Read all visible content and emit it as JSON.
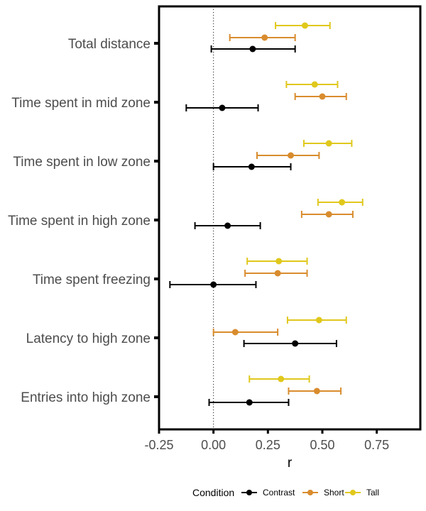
{
  "chart_data": {
    "type": "scatter",
    "subtype": "forest-plot-with-error-bars",
    "xlabel": "r",
    "ylabel": "",
    "xlim": [
      -0.25,
      0.95
    ],
    "xticks": [
      -0.25,
      0.0,
      0.25,
      0.5,
      0.75
    ],
    "xtick_labels": [
      "-0.25",
      "0.00",
      "0.25",
      "0.50",
      "0.75"
    ],
    "reference_line": {
      "x": 0,
      "style": "dotted"
    },
    "grid": false,
    "categories": [
      "Total distance",
      "Time spent in mid zone",
      "Time spent in low zone",
      "Time spent in high zone",
      "Time spent freezing",
      "Latency to high zone",
      "Entries into high zone"
    ],
    "legend": {
      "title": "Condition",
      "position": "bottom"
    },
    "series": [
      {
        "name": "Contrast",
        "color": "#000000",
        "points": [
          {
            "r": 0.18,
            "low": -0.01,
            "high": 0.375
          },
          {
            "r": 0.04,
            "low": -0.125,
            "high": 0.205
          },
          {
            "r": 0.175,
            "low": 0.0,
            "high": 0.355
          },
          {
            "r": 0.065,
            "low": -0.085,
            "high": 0.215
          },
          {
            "r": 0.0,
            "low": -0.2,
            "high": 0.195
          },
          {
            "r": 0.375,
            "low": 0.14,
            "high": 0.565
          },
          {
            "r": 0.165,
            "low": -0.02,
            "high": 0.345
          }
        ]
      },
      {
        "name": "Short",
        "color": "#d98c2e",
        "points": [
          {
            "r": 0.235,
            "low": 0.075,
            "high": 0.375
          },
          {
            "r": 0.5,
            "low": 0.375,
            "high": 0.61
          },
          {
            "r": 0.355,
            "low": 0.2,
            "high": 0.485
          },
          {
            "r": 0.53,
            "low": 0.405,
            "high": 0.64
          },
          {
            "r": 0.295,
            "low": 0.145,
            "high": 0.43
          },
          {
            "r": 0.1,
            "low": 0.0,
            "high": 0.295
          },
          {
            "r": 0.475,
            "low": 0.345,
            "high": 0.585
          }
        ]
      },
      {
        "name": "Tall",
        "color": "#e0c81c",
        "points": [
          {
            "r": 0.42,
            "low": 0.285,
            "high": 0.535
          },
          {
            "r": 0.465,
            "low": 0.335,
            "high": 0.57
          },
          {
            "r": 0.53,
            "low": 0.415,
            "high": 0.635
          },
          {
            "r": 0.59,
            "low": 0.48,
            "high": 0.685
          },
          {
            "r": 0.3,
            "low": 0.155,
            "high": 0.43
          },
          {
            "r": 0.485,
            "low": 0.34,
            "high": 0.61
          },
          {
            "r": 0.31,
            "low": 0.165,
            "high": 0.44
          }
        ]
      }
    ]
  }
}
